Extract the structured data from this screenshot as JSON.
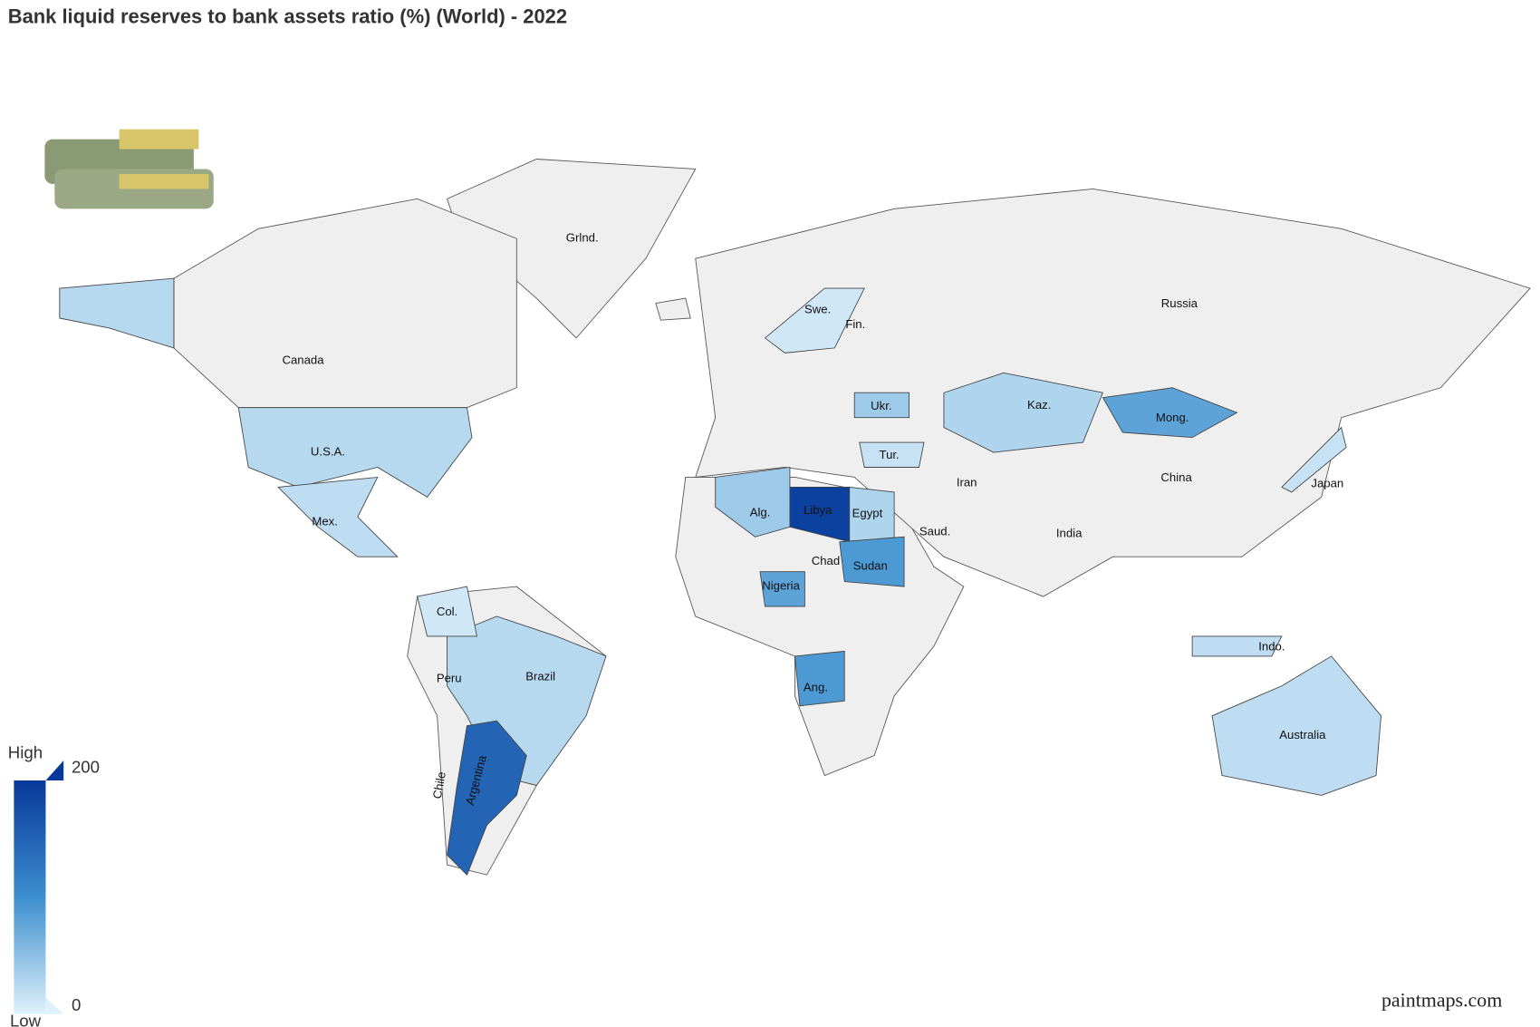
{
  "title": "Bank liquid reserves to bank assets ratio (%) (World) - 2022",
  "map": {
    "countries": [
      {
        "name": "Grlnd.",
        "value": null
      },
      {
        "name": "Canada",
        "value": null
      },
      {
        "name": "U.S.A.",
        "value": 25
      },
      {
        "name": "Mex.",
        "value": 20
      },
      {
        "name": "Brazil",
        "value": 25
      },
      {
        "name": "Argentina",
        "value": 150
      },
      {
        "name": "Col.",
        "value": 10
      },
      {
        "name": "Peru",
        "value": null
      },
      {
        "name": "Chile",
        "value": null
      },
      {
        "name": "Russia",
        "value": null
      },
      {
        "name": "China",
        "value": null
      },
      {
        "name": "India",
        "value": null
      },
      {
        "name": "Kaz.",
        "value": 30
      },
      {
        "name": "Mong.",
        "value": 80
      },
      {
        "name": "Iran",
        "value": null
      },
      {
        "name": "Saud.",
        "value": null
      },
      {
        "name": "Libya",
        "value": 190
      },
      {
        "name": "Egypt",
        "value": 30
      },
      {
        "name": "Alg.",
        "value": 40
      },
      {
        "name": "Sudan",
        "value": 90
      },
      {
        "name": "Nigeria",
        "value": 80
      },
      {
        "name": "Ang.",
        "value": 90
      },
      {
        "name": "Chad",
        "value": null
      },
      {
        "name": "Australia",
        "value": 20
      },
      {
        "name": "Indo.",
        "value": 20
      },
      {
        "name": "Japan",
        "value": 15
      },
      {
        "name": "Fin.",
        "value": null
      },
      {
        "name": "Swe.",
        "value": 10
      },
      {
        "name": "Tur.",
        "value": 15
      },
      {
        "name": "Ukr.",
        "value": 40
      }
    ],
    "legend": {
      "high": "High",
      "low": "Low",
      "max": 200,
      "min": 0
    }
  },
  "watermark": "paintmaps.com"
}
